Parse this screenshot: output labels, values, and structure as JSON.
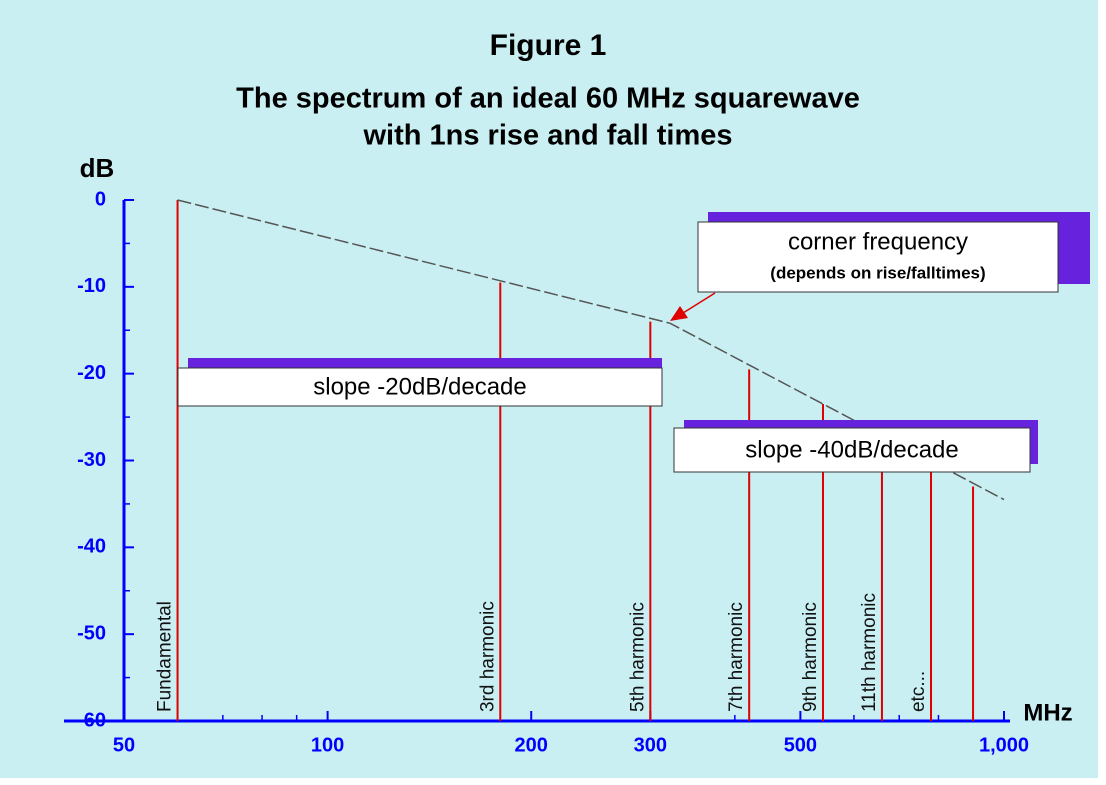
{
  "chart_data": {
    "type": "spectrum",
    "title": "Figure 1",
    "subtitle": [
      "The spectrum of an ideal 60 MHz squarewave",
      "with 1ns rise and fall times"
    ],
    "y_label": "dB",
    "x_label": "MHz",
    "x_log": true,
    "xlim": [
      50,
      1000
    ],
    "ylim": [
      -60,
      0
    ],
    "xticks": [
      50,
      100,
      200,
      300,
      500,
      {
        "value": 1000,
        "label": "1,000"
      }
    ],
    "xminorticks": [
      60,
      70,
      80,
      90,
      400,
      600,
      700,
      800,
      900
    ],
    "yticks": [
      0,
      -10,
      -20,
      -30,
      -40,
      -50,
      -60
    ],
    "yminorticks": [
      -5,
      -15,
      -25,
      -35,
      -45,
      -55
    ],
    "axis_color": "#0000ff",
    "background": "#c9eff3",
    "categories": [
      "Fundamental",
      "3rd harmonic",
      "5th harmonic",
      "7th harmonic",
      "9th harmonic",
      "11th harmonic",
      "etc...",
      null
    ],
    "series": [
      {
        "name": "harmonics",
        "color": "#e00000",
        "x": [
          60,
          180,
          300,
          420,
          540,
          660,
          780,
          900
        ],
        "values": [
          0,
          -9.5,
          -14,
          -19.5,
          -23.5,
          -27,
          -30,
          -33
        ]
      },
      {
        "name": "envelope",
        "color": "#555555",
        "x": [
          60,
          321,
          1000
        ],
        "values": [
          0,
          -14.2,
          -34.5
        ]
      }
    ],
    "annotations": [
      {
        "text": "corner frequency",
        "note": "(depends on rise/falltimes)"
      },
      {
        "text": "slope -20dB/decade"
      },
      {
        "text": "slope -40dB/decade"
      }
    ]
  }
}
